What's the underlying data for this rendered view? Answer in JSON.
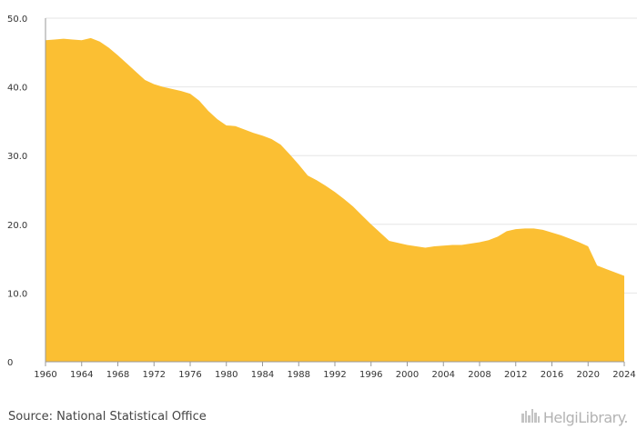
{
  "footer": {
    "source": "Source: National Statistical Office",
    "logo_text": "HelgiLibrary."
  },
  "colors": {
    "area": "#FBBF33",
    "grid": "#e6e6e6",
    "axis": "#999999"
  },
  "chart_data": {
    "type": "area",
    "title": "",
    "xlabel": "",
    "ylabel": "",
    "xlim": [
      1960,
      2024
    ],
    "ylim": [
      0,
      50
    ],
    "x_ticks": [
      "1960",
      "1964",
      "1968",
      "1972",
      "1976",
      "1980",
      "1984",
      "1988",
      "1992",
      "1996",
      "2000",
      "2004",
      "2008",
      "2012",
      "2016",
      "2020",
      "2024"
    ],
    "y_ticks": [
      "0",
      "10.0",
      "20.0",
      "30.0",
      "40.0",
      "50.0"
    ],
    "grid": true,
    "legend": "none",
    "series": [
      {
        "x": [
          1960,
          1961,
          1962,
          1963,
          1964,
          1965,
          1966,
          1967,
          1968,
          1969,
          1970,
          1971,
          1972,
          1973,
          1974,
          1975,
          1976,
          1977,
          1978,
          1979,
          1980,
          1981,
          1982,
          1983,
          1984,
          1985,
          1986,
          1987,
          1988,
          1989,
          1990,
          1991,
          1992,
          1993,
          1994,
          1995,
          1996,
          1997,
          1998,
          1999,
          2000,
          2001,
          2002,
          2003,
          2004,
          2005,
          2006,
          2007,
          2008,
          2009,
          2010,
          2011,
          2012,
          2013,
          2014,
          2015,
          2016,
          2017,
          2018,
          2019,
          2020,
          2021,
          2022,
          2023,
          2024
        ],
        "values": [
          46.8,
          46.9,
          47.0,
          46.9,
          46.8,
          47.1,
          46.6,
          45.7,
          44.6,
          43.4,
          42.2,
          41.0,
          40.4,
          40.0,
          39.7,
          39.4,
          39.0,
          38.0,
          36.5,
          35.3,
          34.4,
          34.3,
          33.8,
          33.3,
          32.9,
          32.4,
          31.6,
          30.2,
          28.7,
          27.1,
          26.4,
          25.6,
          24.7,
          23.7,
          22.6,
          21.3,
          20.0,
          18.8,
          17.6,
          17.3,
          17.0,
          16.8,
          16.6,
          16.8,
          16.9,
          17.0,
          17.0,
          17.2,
          17.4,
          17.7,
          18.2,
          19.0,
          19.3,
          19.4,
          19.4,
          19.2,
          18.8,
          18.4,
          17.9,
          17.4,
          16.8,
          14.0,
          13.5,
          13.0,
          12.5
        ]
      }
    ]
  }
}
